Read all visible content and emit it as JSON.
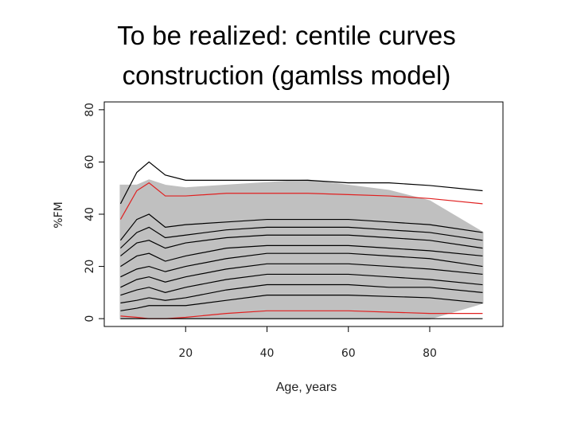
{
  "chart_data": {
    "type": "line",
    "title": "To be realized: centile curves construction (gamlss model)",
    "x_label": "Age, years",
    "y_label": "%FM",
    "xlim": [
      0,
      98
    ],
    "ylim": [
      -3,
      83
    ],
    "xticks": [
      20,
      40,
      60,
      80
    ],
    "yticks": [
      0,
      20,
      40,
      60,
      80
    ],
    "x": [
      4,
      8,
      11,
      15,
      20,
      30,
      40,
      50,
      60,
      70,
      80,
      93
    ],
    "cloud": {
      "color": "#c0c0c0",
      "upper": [
        51,
        51,
        53,
        51,
        50,
        51,
        52,
        53,
        51,
        49,
        45,
        33
      ],
      "lower": [
        0,
        0,
        0,
        0,
        0,
        0,
        0,
        0,
        0,
        0,
        0,
        6
      ]
    },
    "series": [
      {
        "color": "#000000",
        "values": [
          44,
          56,
          60,
          55,
          53,
          53,
          53,
          53,
          52,
          52,
          51,
          49
        ]
      },
      {
        "color": "#e02020",
        "values": [
          38,
          49,
          52,
          47,
          47,
          48,
          48,
          48,
          47.5,
          47,
          46,
          44
        ]
      },
      {
        "color": "#000000",
        "values": [
          30,
          38,
          40,
          35,
          36,
          37,
          38,
          38,
          38,
          37,
          36,
          33
        ]
      },
      {
        "color": "#000000",
        "values": [
          27,
          33,
          35,
          31,
          32,
          34,
          35,
          35,
          35,
          34,
          33,
          30
        ]
      },
      {
        "color": "#000000",
        "values": [
          24,
          29,
          30,
          27,
          29,
          31,
          32,
          32,
          32,
          31,
          30,
          27
        ]
      },
      {
        "color": "#000000",
        "values": [
          20,
          24,
          25,
          22,
          24,
          27,
          28,
          28,
          28,
          27,
          26,
          24
        ]
      },
      {
        "color": "#000000",
        "values": [
          16,
          19,
          20,
          18,
          20,
          23,
          25,
          25,
          25,
          24,
          23,
          20
        ]
      },
      {
        "color": "#000000",
        "values": [
          12,
          15,
          16,
          14,
          16,
          19,
          21,
          21,
          21,
          20,
          19,
          17
        ]
      },
      {
        "color": "#000000",
        "values": [
          9,
          11,
          12,
          10,
          12,
          15,
          17,
          17,
          17,
          16,
          15,
          13
        ]
      },
      {
        "color": "#000000",
        "values": [
          6,
          7,
          8,
          7,
          8,
          11,
          13,
          13,
          13,
          12,
          12,
          10
        ]
      },
      {
        "color": "#000000",
        "values": [
          3,
          4,
          5,
          5,
          5,
          7,
          9,
          9,
          9,
          8.5,
          8,
          6
        ]
      },
      {
        "color": "#e02020",
        "values": [
          1,
          0.5,
          0,
          0,
          0.5,
          2,
          3,
          3,
          3,
          2.5,
          2,
          2
        ]
      },
      {
        "color": "#000000",
        "values": [
          0,
          0,
          0,
          0,
          0,
          0,
          0,
          0,
          0,
          0,
          0,
          0
        ]
      }
    ]
  }
}
